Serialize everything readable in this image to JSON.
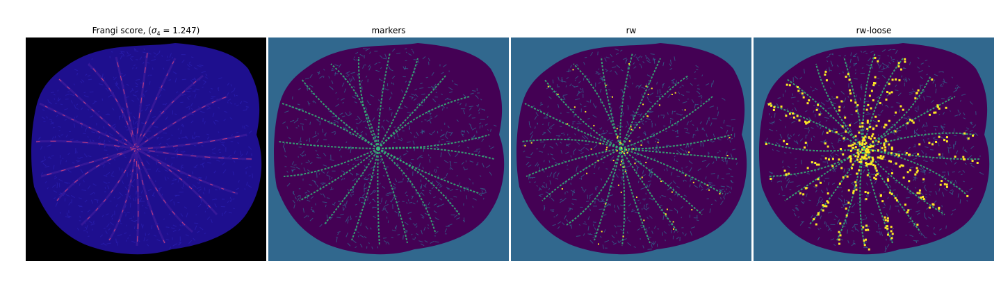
{
  "figure": {
    "panels": [
      {
        "title_prefix": "Frangi score, (",
        "title_symbol": "σ",
        "title_subscript": "4",
        "title_suffix": " = 1.247)",
        "colormap": "plasma",
        "background_color": "#000000",
        "base_color": "#1e0f8e",
        "highlight_color": "#c33d80"
      },
      {
        "title": "markers",
        "colormap": "viridis",
        "background_color": "#31688e",
        "base_color": "#440154",
        "highlight_color": "#35b779"
      },
      {
        "title": "rw",
        "colormap": "viridis",
        "background_color": "#31688e",
        "base_color": "#440154",
        "highlight_color": "#35b779",
        "accent_color": "#fde725"
      },
      {
        "title": "rw-loose",
        "colormap": "viridis",
        "background_color": "#31688e",
        "base_color": "#440154",
        "highlight_color": "#35b779",
        "accent_color": "#fde725"
      }
    ]
  }
}
